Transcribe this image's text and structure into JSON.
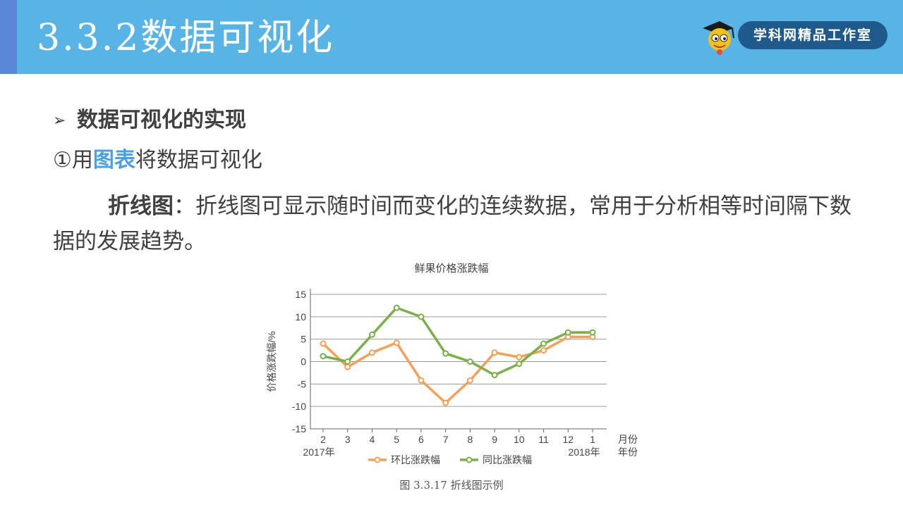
{
  "header": {
    "title": "3.3.2数据可视化",
    "brand": "学科网精品工作室",
    "logo_icon": "student-mascot-icon",
    "bar_color": "#59b4e6",
    "accent_color": "#5a86d6"
  },
  "content": {
    "bullet_icon": "arrow-right-icon",
    "heading": "数据可视化的实现",
    "item_number": "①",
    "item_prefix": "用",
    "item_highlight": "图表",
    "item_suffix": "将数据可视化",
    "para_term": "折线图",
    "para_text": "：折线图可显示随时间而变化的连续数据，常用于分析相等时间隔下数据的发展趋势。",
    "highlight_color": "#4aa0e6"
  },
  "chart_data": {
    "type": "line",
    "title": "鲜果价格涨跌幅",
    "ylabel": "价格涨跌幅/%",
    "xlabel": "月份",
    "year_label_axis": "年份",
    "categories": [
      "2",
      "3",
      "4",
      "5",
      "6",
      "7",
      "8",
      "9",
      "10",
      "11",
      "12",
      "1"
    ],
    "year_labels": {
      "start": "2017年",
      "end": "2018年"
    },
    "ylim": [
      -15,
      15
    ],
    "yticks": [
      15,
      10,
      5,
      0,
      -5,
      -10,
      -15
    ],
    "grid": true,
    "legend_position": "bottom",
    "series": [
      {
        "name": "环比涨跌幅",
        "color": "#f5a05a",
        "values": [
          4,
          -1.2,
          2,
          4.2,
          -4.2,
          -9.2,
          -4.2,
          2,
          1,
          2.5,
          5.5,
          5.5
        ]
      },
      {
        "name": "同比涨跌幅",
        "color": "#7ab04a",
        "values": [
          1.2,
          0,
          6,
          12,
          10,
          1.8,
          0,
          -3,
          -0.5,
          4,
          6.5,
          6.5
        ]
      }
    ],
    "caption": "图 3.3.17   折线图示例"
  }
}
